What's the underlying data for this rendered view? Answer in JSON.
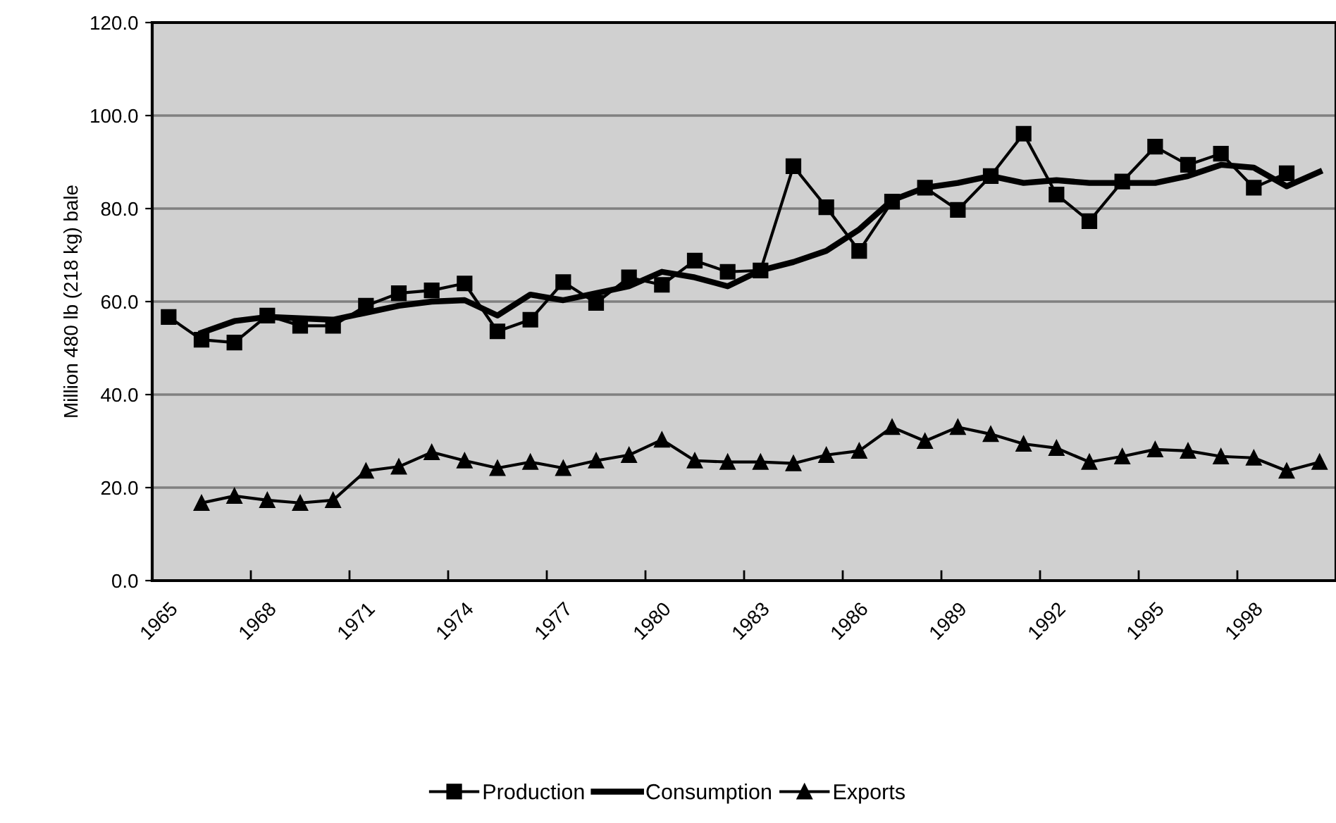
{
  "chart_data": {
    "type": "line",
    "categories": [
      "1965",
      null,
      null,
      "1968",
      null,
      null,
      "1971",
      null,
      null,
      "1974",
      null,
      null,
      "1977",
      null,
      null,
      "1980",
      null,
      null,
      "1983",
      null,
      null,
      "1986",
      null,
      null,
      "1989",
      null,
      null,
      "1992",
      null,
      null,
      "1995",
      null,
      null,
      "1998",
      null,
      null
    ],
    "ylabel": "Million 480 lb (218 kg) bale",
    "ylim": [
      0,
      120
    ],
    "yticks": [
      {
        "value": 0,
        "label": "0.0"
      },
      {
        "value": 20,
        "label": "20.0"
      },
      {
        "value": 40,
        "label": "40.0"
      },
      {
        "value": 60,
        "label": "60.0"
      },
      {
        "value": 80,
        "label": "80.0"
      },
      {
        "value": 100,
        "label": "100.0"
      },
      {
        "value": 120,
        "label": "120.0"
      }
    ],
    "grid": "y",
    "legend": "bottom",
    "series": [
      {
        "name": "Production",
        "color": "#000000",
        "marker": "square",
        "values": [
          56.7,
          51.8,
          51.2,
          57.0,
          54.8,
          54.8,
          59.1,
          61.8,
          62.4,
          63.9,
          53.6,
          56.1,
          64.2,
          59.7,
          65.2,
          63.6,
          68.8,
          66.4,
          66.7,
          89.1,
          80.3,
          70.9,
          81.5,
          84.5,
          79.7,
          87.0,
          96.1,
          83.0,
          77.3,
          85.8,
          93.3,
          89.4,
          91.8,
          84.5,
          87.6,
          null
        ]
      },
      {
        "name": "Consumption",
        "color": "#000000",
        "marker": "none",
        "values": [
          null,
          53.3,
          55.8,
          56.7,
          56.4,
          56.1,
          57.6,
          59.1,
          60.0,
          60.3,
          57.0,
          61.5,
          60.3,
          61.8,
          63.3,
          66.4,
          65.2,
          63.3,
          66.7,
          68.5,
          70.9,
          75.5,
          81.8,
          84.5,
          85.5,
          87.0,
          85.5,
          86.1,
          85.5,
          85.5,
          85.5,
          87.0,
          89.4,
          88.8,
          84.8,
          87.9
        ]
      },
      {
        "name": "Exports",
        "color": "#000000",
        "marker": "triangle",
        "values": [
          null,
          16.7,
          18.2,
          17.3,
          16.7,
          17.3,
          23.6,
          24.5,
          27.6,
          25.8,
          24.2,
          25.5,
          24.2,
          25.8,
          27.0,
          30.3,
          25.8,
          25.5,
          25.5,
          25.2,
          27.0,
          27.9,
          33.0,
          30.0,
          33.0,
          31.5,
          29.4,
          28.5,
          25.5,
          26.7,
          28.2,
          27.9,
          26.7,
          26.4,
          23.6,
          25.5
        ]
      }
    ]
  }
}
